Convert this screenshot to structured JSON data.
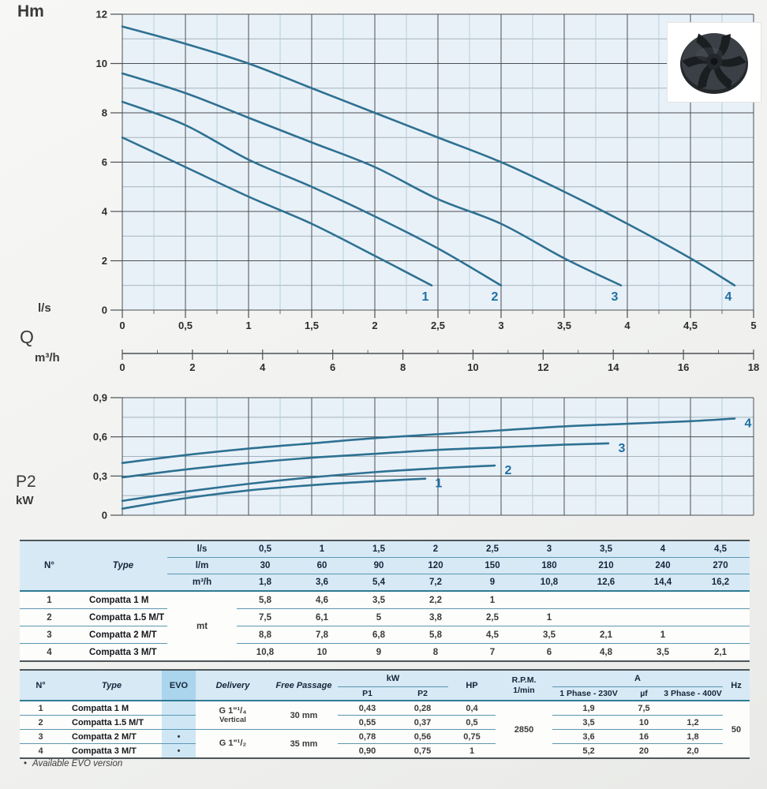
{
  "page": {
    "footnote_bullet": "•",
    "footnote": "Available EVO version"
  },
  "colors": {
    "curve": "#2e7192",
    "curve_label": "#1f6fa3",
    "plot_bg": "#e9f1f8",
    "grid_major": "#4b5054",
    "grid_minor_v": "#b4cedd",
    "grid_minor_h": "#a3b4bd",
    "table_line": "#5b97af",
    "table_header_bg": "#d7e9f5",
    "evo_header_bg": "#abd4ed",
    "evo_col_bg": "#cfe7f5"
  },
  "chart_data": [
    {
      "id": "head_flow_chart",
      "type": "line",
      "title": "",
      "ylabel": "Hm",
      "ylim": [
        0,
        12
      ],
      "yticks": [
        [
          0,
          "0"
        ],
        [
          2,
          "2"
        ],
        [
          4,
          "4"
        ],
        [
          6,
          "6"
        ],
        [
          8,
          "8"
        ],
        [
          10,
          "10"
        ],
        [
          12,
          "12"
        ]
      ],
      "xlim": [
        0,
        5
      ],
      "grid": "on",
      "x_axis_primary": {
        "unit": "l/s",
        "ticks": [
          [
            0,
            "0"
          ],
          [
            0.5,
            "0,5"
          ],
          [
            1,
            "1"
          ],
          [
            1.5,
            "1,5"
          ],
          [
            2,
            "2"
          ],
          [
            2.5,
            "2,5"
          ],
          [
            3,
            "3"
          ],
          [
            3.5,
            "3,5"
          ],
          [
            4,
            "4"
          ],
          [
            4.5,
            "4,5"
          ],
          [
            5,
            "5"
          ]
        ]
      },
      "x_axis_secondary": {
        "label": "Q",
        "unit": "m³/h",
        "max": 18,
        "ticks": [
          [
            0,
            "0"
          ],
          [
            2,
            "2"
          ],
          [
            4,
            "4"
          ],
          [
            6,
            "6"
          ],
          [
            8,
            "8"
          ],
          [
            10,
            "10"
          ],
          [
            12,
            "12"
          ],
          [
            14,
            "14"
          ],
          [
            16,
            "16"
          ],
          [
            18,
            "18"
          ]
        ]
      },
      "series": [
        {
          "name": "1",
          "points": [
            [
              0,
              7.0
            ],
            [
              0.5,
              5.8
            ],
            [
              1,
              4.6
            ],
            [
              1.5,
              3.5
            ],
            [
              2,
              2.2
            ],
            [
              2.45,
              1.0
            ]
          ]
        },
        {
          "name": "2",
          "points": [
            [
              0,
              8.45
            ],
            [
              0.5,
              7.5
            ],
            [
              1,
              6.1
            ],
            [
              1.5,
              5.0
            ],
            [
              2,
              3.8
            ],
            [
              2.5,
              2.5
            ],
            [
              3,
              1.0
            ]
          ]
        },
        {
          "name": "3",
          "points": [
            [
              0,
              9.6
            ],
            [
              0.5,
              8.8
            ],
            [
              1,
              7.8
            ],
            [
              1.5,
              6.8
            ],
            [
              2,
              5.8
            ],
            [
              2.5,
              4.5
            ],
            [
              3,
              3.5
            ],
            [
              3.5,
              2.1
            ],
            [
              3.95,
              1.0
            ]
          ]
        },
        {
          "name": "4",
          "points": [
            [
              0,
              11.5
            ],
            [
              0.5,
              10.8
            ],
            [
              1,
              10.0
            ],
            [
              1.5,
              9.0
            ],
            [
              2,
              8.0
            ],
            [
              2.5,
              7.0
            ],
            [
              3,
              6.0
            ],
            [
              3.5,
              4.8
            ],
            [
              4,
              3.5
            ],
            [
              4.5,
              2.1
            ],
            [
              4.85,
              1.0
            ]
          ]
        }
      ]
    },
    {
      "id": "power_p2_chart",
      "type": "line",
      "title": "",
      "ylabel": "P2",
      "y_unit": "kW",
      "ylim": [
        0,
        0.9
      ],
      "yticks": [
        [
          0,
          "0"
        ],
        [
          0.3,
          "0,3"
        ],
        [
          0.6,
          "0,6"
        ],
        [
          0.9,
          "0,9"
        ]
      ],
      "yminor": [
        0.15,
        0.45,
        0.75
      ],
      "xlim": [
        0,
        5
      ],
      "grid": "on",
      "series": [
        {
          "name": "1",
          "points": [
            [
              0,
              0.05
            ],
            [
              0.5,
              0.13
            ],
            [
              1,
              0.19
            ],
            [
              1.5,
              0.23
            ],
            [
              2,
              0.26
            ],
            [
              2.4,
              0.28
            ]
          ]
        },
        {
          "name": "2",
          "points": [
            [
              0,
              0.11
            ],
            [
              0.5,
              0.18
            ],
            [
              1,
              0.24
            ],
            [
              1.5,
              0.29
            ],
            [
              2,
              0.33
            ],
            [
              2.5,
              0.36
            ],
            [
              2.95,
              0.38
            ]
          ]
        },
        {
          "name": "3",
          "points": [
            [
              0,
              0.29
            ],
            [
              0.5,
              0.35
            ],
            [
              1,
              0.4
            ],
            [
              1.5,
              0.44
            ],
            [
              2,
              0.47
            ],
            [
              2.5,
              0.5
            ],
            [
              3,
              0.52
            ],
            [
              3.5,
              0.54
            ],
            [
              3.85,
              0.55
            ]
          ]
        },
        {
          "name": "4",
          "points": [
            [
              0,
              0.4
            ],
            [
              0.5,
              0.46
            ],
            [
              1,
              0.51
            ],
            [
              1.5,
              0.55
            ],
            [
              2,
              0.59
            ],
            [
              2.5,
              0.62
            ],
            [
              3,
              0.65
            ],
            [
              3.5,
              0.68
            ],
            [
              4,
              0.7
            ],
            [
              4.5,
              0.72
            ],
            [
              4.85,
              0.74
            ]
          ]
        }
      ]
    }
  ],
  "performance_table": {
    "header": {
      "n": "N°",
      "type": "Type"
    },
    "unit_rows": [
      {
        "unit": "l/s",
        "values": [
          "0,5",
          "1",
          "1,5",
          "2",
          "2,5",
          "3",
          "3,5",
          "4",
          "4,5"
        ]
      },
      {
        "unit": "l/m",
        "values": [
          "30",
          "60",
          "90",
          "120",
          "150",
          "180",
          "210",
          "240",
          "270"
        ]
      },
      {
        "unit": "m³/h",
        "values": [
          "1,8",
          "3,6",
          "5,4",
          "7,2",
          "9",
          "10,8",
          "12,6",
          "14,4",
          "16,2"
        ]
      }
    ],
    "measure_unit": "mt",
    "rows": [
      {
        "n": "1",
        "type": "Compatta 1 M",
        "values": [
          "5,8",
          "4,6",
          "3,5",
          "2,2",
          "1",
          "",
          "",
          "",
          ""
        ]
      },
      {
        "n": "2",
        "type": "Compatta 1.5 M/T",
        "values": [
          "7,5",
          "6,1",
          "5",
          "3,8",
          "2,5",
          "1",
          "",
          "",
          ""
        ]
      },
      {
        "n": "3",
        "type": "Compatta 2 M/T",
        "values": [
          "8,8",
          "7,8",
          "6,8",
          "5,8",
          "4,5",
          "3,5",
          "2,1",
          "1",
          ""
        ]
      },
      {
        "n": "4",
        "type": "Compatta 3 M/T",
        "values": [
          "10,8",
          "10",
          "9",
          "8",
          "7",
          "6",
          "4,8",
          "3,5",
          "2,1"
        ]
      }
    ]
  },
  "spec_table": {
    "headers": {
      "n": "N°",
      "type": "Type",
      "evo": "EVO",
      "delivery": "Delivery",
      "free_passage": "Free Passage",
      "kw": "kW",
      "p1": "P1",
      "p2": "P2",
      "hp": "HP",
      "rpm_line1": "R.P.M.",
      "rpm_line2": "1/min",
      "a": "A",
      "phase1": "1 Phase - 230V",
      "uf": "µf",
      "phase3": "3 Phase - 400V",
      "hz": "Hz"
    },
    "delivery_groups": [
      {
        "size_line": "G 1\"¹/₄",
        "note": "Vertical",
        "free_passage": "30 mm"
      },
      {
        "size_line": "G 1\"¹/₂",
        "note": "",
        "free_passage": "35 mm"
      }
    ],
    "rpm": "2850",
    "hz": "50",
    "rows": [
      {
        "n": "1",
        "type": "Compatta 1 M",
        "evo": "",
        "p1": "0,43",
        "p2": "0,28",
        "hp": "0,4",
        "a1": "1,9",
        "uf": "7,5",
        "a3": ""
      },
      {
        "n": "2",
        "type": "Compatta 1.5 M/T",
        "evo": "",
        "p1": "0,55",
        "p2": "0,37",
        "hp": "0,5",
        "a1": "3,5",
        "uf": "10",
        "a3": "1,2"
      },
      {
        "n": "3",
        "type": "Compatta 2 M/T",
        "evo": "•",
        "p1": "0,78",
        "p2": "0,56",
        "hp": "0,75",
        "a1": "3,6",
        "uf": "16",
        "a3": "1,8"
      },
      {
        "n": "4",
        "type": "Compatta 3 M/T",
        "evo": "•",
        "p1": "0,90",
        "p2": "0,75",
        "hp": "1",
        "a1": "5,2",
        "uf": "20",
        "a3": "2,0"
      }
    ]
  }
}
